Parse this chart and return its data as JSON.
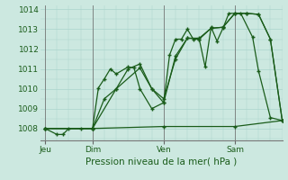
{
  "background_color": "#cce8e0",
  "grid_color": "#aad4cc",
  "line_color": "#1a5c1a",
  "title": "Pression niveau de la mer( hPa )",
  "ylim": [
    1007.4,
    1014.2
  ],
  "yticks": [
    1008,
    1009,
    1010,
    1011,
    1012,
    1013,
    1014
  ],
  "day_labels": [
    "Jeu",
    "Dim",
    "Ven",
    "Sam"
  ],
  "day_positions": [
    0,
    2,
    5,
    8
  ],
  "day_ticks": [
    0,
    2,
    5,
    8
  ],
  "xmin": -0.2,
  "xmax": 10.0,
  "line1_x": [
    0.0,
    0.5,
    0.75,
    1.0,
    1.5,
    2.0,
    2.25,
    2.5,
    2.75,
    3.0,
    3.5,
    3.75,
    4.0,
    4.5,
    5.0,
    5.25,
    5.5,
    5.75,
    6.0,
    6.25,
    6.5,
    6.75,
    7.0,
    7.25,
    7.5,
    7.75,
    8.0,
    8.25,
    8.75,
    9.0,
    9.5,
    10.0
  ],
  "line1_y": [
    1008.0,
    1007.7,
    1007.7,
    1008.0,
    1008.0,
    1008.0,
    1010.05,
    1010.5,
    1011.0,
    1010.75,
    1011.1,
    1011.05,
    1010.0,
    1009.0,
    1009.3,
    1011.7,
    1012.5,
    1012.5,
    1013.0,
    1012.5,
    1012.5,
    1011.1,
    1013.1,
    1012.4,
    1013.05,
    1013.8,
    1013.8,
    1013.8,
    1012.6,
    1010.9,
    1008.55,
    1008.4
  ],
  "line2_x": [
    0.0,
    2.0,
    5.0,
    8.0,
    10.0
  ],
  "line2_y": [
    1008.0,
    1008.0,
    1008.1,
    1008.1,
    1008.4
  ],
  "line3_x": [
    0.0,
    2.0,
    2.5,
    3.0,
    3.5,
    4.0,
    4.5,
    5.0,
    5.5,
    6.0,
    6.5,
    7.0,
    7.5,
    8.0,
    8.5,
    9.0,
    9.5,
    10.0
  ],
  "line3_y": [
    1008.0,
    1008.0,
    1009.5,
    1010.0,
    1011.0,
    1011.25,
    1010.0,
    1009.5,
    1011.5,
    1012.55,
    1012.5,
    1013.05,
    1013.1,
    1013.8,
    1013.8,
    1013.75,
    1012.5,
    1008.4
  ],
  "line4_x": [
    0.0,
    2.0,
    3.0,
    4.0,
    4.5,
    5.0,
    5.5,
    6.0,
    6.5,
    7.0,
    7.5,
    8.0,
    8.5,
    9.0,
    9.5,
    10.0
  ],
  "line4_y": [
    1008.0,
    1008.0,
    1010.0,
    1011.05,
    1010.0,
    1009.3,
    1011.65,
    1012.55,
    1012.55,
    1013.05,
    1013.1,
    1013.8,
    1013.8,
    1013.75,
    1012.5,
    1008.4
  ],
  "marker_size": 2.5,
  "linewidth": 0.9,
  "title_fontsize": 7.5,
  "tick_fontsize": 6.5
}
